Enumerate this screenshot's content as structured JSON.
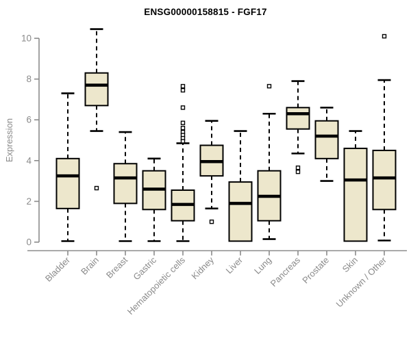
{
  "title": "ENSG00000158815 - FGF17",
  "ylabel": "Expression",
  "colors": {
    "box_fill": "#EDE7CC",
    "box_stroke": "#000000",
    "median": "#000000",
    "whisker": "#000000",
    "outlier_stroke": "#000000",
    "outlier_fill": "#FFFFFF",
    "axis": "#8A8A8A",
    "tick_label": "#8A8A8A",
    "title_color": "#000000",
    "background": "#FFFFFF"
  },
  "chart_data": {
    "type": "boxplot",
    "title": "ENSG00000158815 - FGF17",
    "xlabel": "",
    "ylabel": "Expression",
    "ylim": [
      0,
      10
    ],
    "yticks": [
      0,
      2,
      4,
      6,
      8,
      10
    ],
    "grid": false,
    "legend": "none",
    "categories": [
      "Bladder",
      "Brain",
      "Breast",
      "Gastric",
      "Hematopoietic cells",
      "Kidney",
      "Liver",
      "Lung",
      "Pancreas",
      "Prostate",
      "Skin",
      "Unknown / Other"
    ],
    "series": [
      {
        "category": "Bladder",
        "whisker_low": 0.05,
        "q1": 1.65,
        "median": 3.25,
        "q3": 4.1,
        "whisker_high": 7.3,
        "outliers": []
      },
      {
        "category": "Brain",
        "whisker_low": 5.45,
        "q1": 6.7,
        "median": 7.7,
        "q3": 8.3,
        "whisker_high": 10.45,
        "outliers": [
          2.65
        ]
      },
      {
        "category": "Breast",
        "whisker_low": 0.05,
        "q1": 1.9,
        "median": 3.15,
        "q3": 3.85,
        "whisker_high": 5.4,
        "outliers": []
      },
      {
        "category": "Gastric",
        "whisker_low": 0.05,
        "q1": 1.6,
        "median": 2.6,
        "q3": 3.5,
        "whisker_high": 4.1,
        "outliers": []
      },
      {
        "category": "Hematopoietic cells",
        "whisker_low": 0.05,
        "q1": 1.05,
        "median": 1.85,
        "q3": 2.55,
        "whisker_high": 4.85,
        "outliers": [
          7.65,
          7.45,
          6.6,
          5.85,
          5.6,
          5.4,
          5.25,
          5.1,
          4.95
        ]
      },
      {
        "category": "Kidney",
        "whisker_low": 1.65,
        "q1": 3.25,
        "median": 3.95,
        "q3": 4.75,
        "whisker_high": 5.95,
        "outliers": [
          1.0
        ]
      },
      {
        "category": "Liver",
        "whisker_low": 0.05,
        "q1": 0.05,
        "median": 1.9,
        "q3": 2.95,
        "whisker_high": 5.45,
        "outliers": []
      },
      {
        "category": "Lung",
        "whisker_low": 0.15,
        "q1": 1.05,
        "median": 2.25,
        "q3": 3.5,
        "whisker_high": 6.3,
        "outliers": [
          7.65
        ]
      },
      {
        "category": "Pancreas",
        "whisker_low": 4.35,
        "q1": 5.55,
        "median": 6.3,
        "q3": 6.6,
        "whisker_high": 7.9,
        "outliers": [
          3.65,
          3.45
        ]
      },
      {
        "category": "Prostate",
        "whisker_low": 3.0,
        "q1": 4.1,
        "median": 5.2,
        "q3": 5.95,
        "whisker_high": 6.6,
        "outliers": []
      },
      {
        "category": "Skin",
        "whisker_low": 0.05,
        "q1": 0.05,
        "median": 3.05,
        "q3": 4.6,
        "whisker_high": 5.45,
        "outliers": []
      },
      {
        "category": "Unknown / Other",
        "whisker_low": 0.08,
        "q1": 1.6,
        "median": 3.15,
        "q3": 4.5,
        "whisker_high": 7.95,
        "outliers": [
          10.1
        ]
      }
    ]
  }
}
